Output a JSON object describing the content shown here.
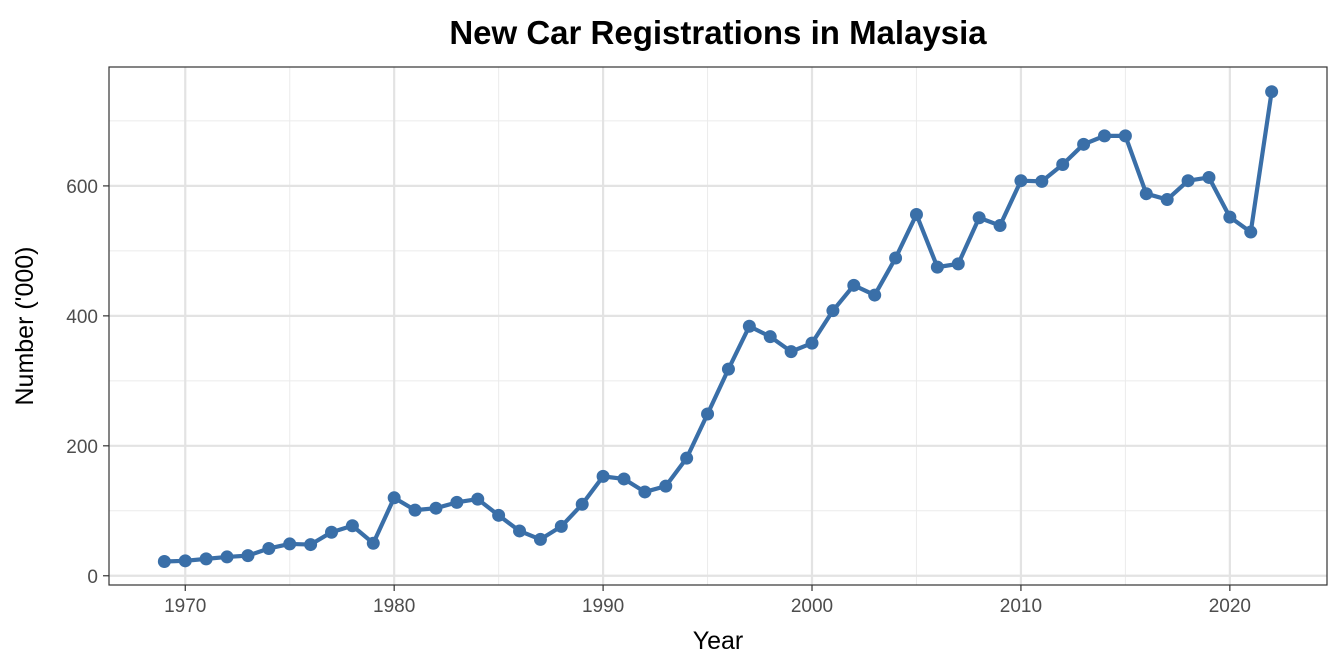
{
  "chart_data": {
    "type": "line",
    "title": "New Car Registrations in Malaysia",
    "xlabel": "Year",
    "ylabel": "Number ('000)",
    "xlim": [
      1966.35,
      2024.65
    ],
    "ylim": [
      -14.2,
      783.0
    ],
    "x_ticks": [
      1970,
      1980,
      1990,
      2000,
      2010,
      2020
    ],
    "y_ticks": [
      0,
      200,
      400,
      600
    ],
    "grid": true,
    "legend": "none",
    "series": [
      {
        "color": "#3a6fa8",
        "points": [
          [
            1969,
            22
          ],
          [
            1970,
            23
          ],
          [
            1971,
            26
          ],
          [
            1972,
            29
          ],
          [
            1973,
            31
          ],
          [
            1974,
            42
          ],
          [
            1975,
            49
          ],
          [
            1976,
            48
          ],
          [
            1977,
            67
          ],
          [
            1978,
            77
          ],
          [
            1979,
            50
          ],
          [
            1980,
            120
          ],
          [
            1981,
            101
          ],
          [
            1982,
            104
          ],
          [
            1983,
            113
          ],
          [
            1984,
            118
          ],
          [
            1985,
            93
          ],
          [
            1986,
            69
          ],
          [
            1987,
            56
          ],
          [
            1988,
            76
          ],
          [
            1989,
            110
          ],
          [
            1990,
            153
          ],
          [
            1991,
            149
          ],
          [
            1992,
            129
          ],
          [
            1993,
            138
          ],
          [
            1994,
            181
          ],
          [
            1995,
            249
          ],
          [
            1996,
            318
          ],
          [
            1997,
            384
          ],
          [
            1998,
            368
          ],
          [
            1999,
            345
          ],
          [
            2000,
            358
          ],
          [
            2001,
            408
          ],
          [
            2002,
            447
          ],
          [
            2003,
            432
          ],
          [
            2004,
            489
          ],
          [
            2005,
            556
          ],
          [
            2006,
            475
          ],
          [
            2007,
            480
          ],
          [
            2008,
            551
          ],
          [
            2009,
            539
          ],
          [
            2010,
            608
          ],
          [
            2011,
            607
          ],
          [
            2012,
            633
          ],
          [
            2013,
            664
          ],
          [
            2014,
            677
          ],
          [
            2015,
            677
          ],
          [
            2016,
            588
          ],
          [
            2017,
            579
          ],
          [
            2018,
            608
          ],
          [
            2019,
            613
          ],
          [
            2020,
            552
          ],
          [
            2021,
            529
          ],
          [
            2022,
            745
          ]
        ]
      }
    ]
  }
}
